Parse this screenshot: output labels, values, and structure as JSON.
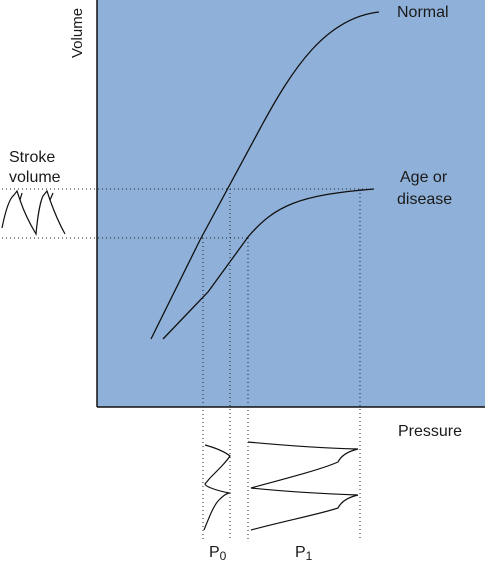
{
  "chart_data": {
    "type": "line",
    "xlabel": "Pressure",
    "ylabel": "Volume",
    "grid": false,
    "colors": {
      "plot_background": "#8fb0d8",
      "axes": "#111111",
      "curves": "#111111"
    },
    "series": [
      {
        "name": "Normal",
        "label_lines": [
          "Normal"
        ]
      },
      {
        "name": "Age or disease",
        "label_lines": [
          "Age or",
          "disease"
        ]
      }
    ],
    "annotations": {
      "stroke_volume": [
        "Stroke",
        "volume"
      ],
      "pressure_markers": [
        {
          "base": "P",
          "sub": "0"
        },
        {
          "base": "P",
          "sub": "1"
        }
      ]
    }
  }
}
